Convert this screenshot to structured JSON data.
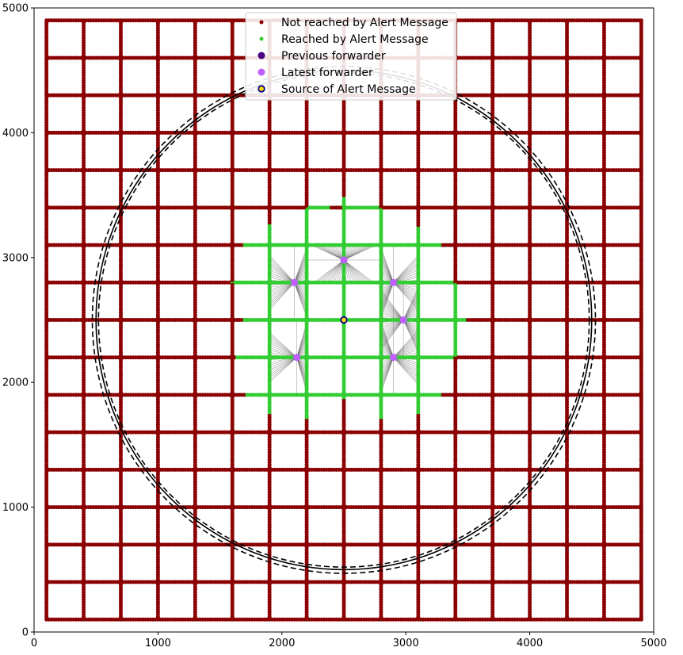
{
  "chart_data": {
    "type": "scatter",
    "xlim": [
      0,
      5000
    ],
    "ylim": [
      0,
      5000
    ],
    "x_ticks": [
      0,
      1000,
      2000,
      3000,
      4000,
      5000
    ],
    "y_ticks": [
      0,
      1000,
      2000,
      3000,
      4000,
      5000
    ],
    "grid": false,
    "legend_position": "top-center",
    "node_spacing": 20,
    "street_grid": {
      "min": 100,
      "max": 4900,
      "horizontal_streets_y": [
        100,
        400,
        700,
        1000,
        1300,
        1600,
        1900,
        2200,
        2500,
        2800,
        3100,
        3400,
        3700,
        4000,
        4300,
        4600,
        4900
      ],
      "vertical_streets_x": [
        100,
        400,
        700,
        1000,
        1300,
        1600,
        1900,
        2200,
        2500,
        2800,
        3100,
        3400,
        3700,
        4000,
        4300,
        4600,
        4900
      ]
    },
    "source": {
      "x": 2500,
      "y": 2500
    },
    "latest_forwarders": [
      {
        "x": 2500,
        "y": 2980
      },
      {
        "x": 2100,
        "y": 2800
      },
      {
        "x": 2900,
        "y": 2800
      },
      {
        "x": 2980,
        "y": 2500
      },
      {
        "x": 2120,
        "y": 2200
      },
      {
        "x": 2900,
        "y": 2200
      }
    ],
    "reached_segments_horizontal": [
      {
        "y": 3400,
        "x0": 2220,
        "x1": 2380
      },
      {
        "y": 3400,
        "x0": 2520,
        "x1": 2780
      },
      {
        "y": 3100,
        "x0": 1700,
        "x1": 1880
      },
      {
        "y": 3100,
        "x0": 1920,
        "x1": 2180
      },
      {
        "y": 3100,
        "x0": 2220,
        "x1": 2480
      },
      {
        "y": 3100,
        "x0": 2520,
        "x1": 2780
      },
      {
        "y": 3100,
        "x0": 2820,
        "x1": 3080
      },
      {
        "y": 3100,
        "x0": 3120,
        "x1": 3280
      },
      {
        "y": 2800,
        "x0": 1600,
        "x1": 1880
      },
      {
        "y": 2800,
        "x0": 1920,
        "x1": 2180
      },
      {
        "y": 2800,
        "x0": 2220,
        "x1": 2480
      },
      {
        "y": 2800,
        "x0": 2520,
        "x1": 2780
      },
      {
        "y": 2800,
        "x0": 2820,
        "x1": 3080
      },
      {
        "y": 2800,
        "x0": 3120,
        "x1": 3380
      },
      {
        "y": 2500,
        "x0": 1700,
        "x1": 1880
      },
      {
        "y": 2500,
        "x0": 1920,
        "x1": 2180
      },
      {
        "y": 2500,
        "x0": 2220,
        "x1": 2480
      },
      {
        "y": 2500,
        "x0": 2520,
        "x1": 2780
      },
      {
        "y": 2500,
        "x0": 2820,
        "x1": 3080
      },
      {
        "y": 2500,
        "x0": 3120,
        "x1": 3380
      },
      {
        "y": 2500,
        "x0": 3420,
        "x1": 3480
      },
      {
        "y": 2200,
        "x0": 1640,
        "x1": 1880
      },
      {
        "y": 2200,
        "x0": 1920,
        "x1": 2180
      },
      {
        "y": 2200,
        "x0": 2220,
        "x1": 2480
      },
      {
        "y": 2200,
        "x0": 2520,
        "x1": 2780
      },
      {
        "y": 2200,
        "x0": 2820,
        "x1": 3080
      },
      {
        "y": 2200,
        "x0": 3120,
        "x1": 3380
      },
      {
        "y": 1900,
        "x0": 1720,
        "x1": 1880
      },
      {
        "y": 1900,
        "x0": 1920,
        "x1": 2180
      },
      {
        "y": 1900,
        "x0": 2220,
        "x1": 2480
      },
      {
        "y": 1900,
        "x0": 2520,
        "x1": 2780
      },
      {
        "y": 1900,
        "x0": 2820,
        "x1": 3080
      },
      {
        "y": 1900,
        "x0": 3120,
        "x1": 3280
      }
    ],
    "reached_segments_vertical": [
      {
        "x": 1900,
        "y0": 1760,
        "y1": 3260
      },
      {
        "x": 2200,
        "y0": 1720,
        "y1": 3380
      },
      {
        "x": 2500,
        "y0": 1880,
        "y1": 3480
      },
      {
        "x": 2800,
        "y0": 1720,
        "y1": 3380
      },
      {
        "x": 3100,
        "y0": 1760,
        "y1": 3240
      },
      {
        "x": 3400,
        "y0": 2220,
        "y1": 2780
      }
    ],
    "range_circles": [
      {
        "cx": 2500,
        "cy": 2500,
        "r": 1980,
        "style": "dashed"
      },
      {
        "cx": 2500,
        "cy": 2500,
        "r": 2000,
        "style": "solid"
      },
      {
        "cx": 2500,
        "cy": 2500,
        "r": 2030,
        "style": "dashed"
      }
    ],
    "legend": [
      {
        "label": "Not reached by Alert Message",
        "marker": "small-dot",
        "color": "#8b0000"
      },
      {
        "label": "Reached by Alert Message",
        "marker": "small-dot",
        "color": "#32cd32"
      },
      {
        "label": "Previous forwarder",
        "marker": "dot",
        "color": "#4b0082"
      },
      {
        "label": "Latest forwarder",
        "marker": "dot",
        "color": "#bf5fff"
      },
      {
        "label": "Source of Alert Message",
        "marker": "ring",
        "color": "#ffd700",
        "edge": "#00008b"
      }
    ]
  }
}
